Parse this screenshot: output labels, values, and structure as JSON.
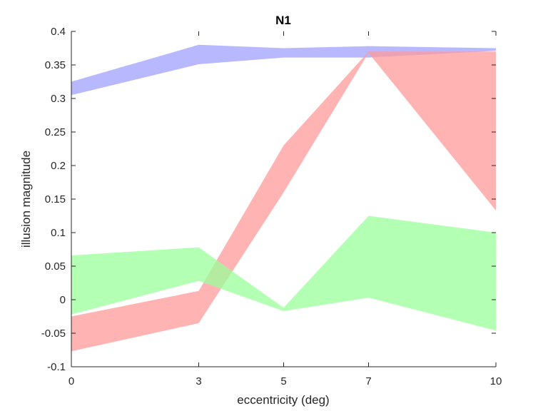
{
  "chart_data": {
    "type": "area",
    "title": "N1",
    "xlabel": "eccentricity (deg)",
    "ylabel": "illusion magnitude",
    "x": [
      0,
      3,
      5,
      7,
      10
    ],
    "xticks": [
      "0",
      "3",
      "5",
      "7",
      "10"
    ],
    "yticks": [
      "-0.1",
      "-0.05",
      "0",
      "0.05",
      "0.1",
      "0.15",
      "0.2",
      "0.25",
      "0.3",
      "0.35",
      "0.4"
    ],
    "xlim": [
      0,
      10
    ],
    "ylim": [
      -0.1,
      0.4
    ],
    "grid": false,
    "legend": "none",
    "series": [
      {
        "color": "#a0a0ff",
        "upper": [
          0.325,
          0.38,
          0.375,
          0.378,
          0.375
        ],
        "lower": [
          0.305,
          0.351,
          0.361,
          0.361,
          0.371
        ]
      },
      {
        "color": "#ff9a9a",
        "upper": [
          -0.025,
          0.013,
          0.23,
          0.37,
          0.37
        ],
        "lower": [
          -0.077,
          -0.035,
          0.16,
          0.368,
          0.133
        ]
      },
      {
        "color": "#9aff9a",
        "upper": [
          0.066,
          0.078,
          -0.012,
          0.125,
          0.1
        ],
        "lower": [
          -0.022,
          0.028,
          -0.017,
          0.003,
          -0.046
        ]
      }
    ]
  }
}
